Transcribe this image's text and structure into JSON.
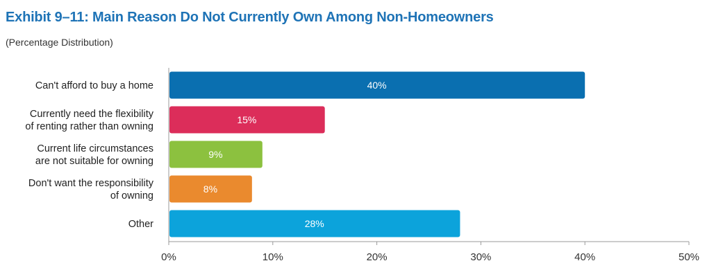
{
  "header": {
    "title": "Exhibit 9–11:  Main Reason Do Not Currently Own Among Non-Homeowners",
    "subtitle": "(Percentage Distribution)"
  },
  "chart_data": {
    "type": "bar",
    "orientation": "horizontal",
    "title": "Exhibit 9–11:  Main Reason Do Not Currently Own Among Non-Homeowners",
    "subtitle": "(Percentage Distribution)",
    "categories": [
      [
        "Can't afford to buy a home"
      ],
      [
        "Currently need the flexibility",
        "of renting rather than owning"
      ],
      [
        "Current life circumstances",
        "are not suitable for owning"
      ],
      [
        "Don't want the responsibility",
        "of owning"
      ],
      [
        "Other"
      ]
    ],
    "values": [
      40,
      15,
      9,
      8,
      28
    ],
    "data_labels": [
      "40%",
      "15%",
      "9%",
      "8%",
      "28%"
    ],
    "bar_colors": [
      "#0a6fb0",
      "#dc2d5a",
      "#8cc13f",
      "#ea8a2e",
      "#0ca3db"
    ],
    "xlim": [
      0,
      50
    ],
    "xticks": [
      0,
      10,
      20,
      30,
      40,
      50
    ],
    "xtick_labels": [
      "0%",
      "10%",
      "20%",
      "30%",
      "40%",
      "50%"
    ],
    "grid": false,
    "legend": "none"
  }
}
